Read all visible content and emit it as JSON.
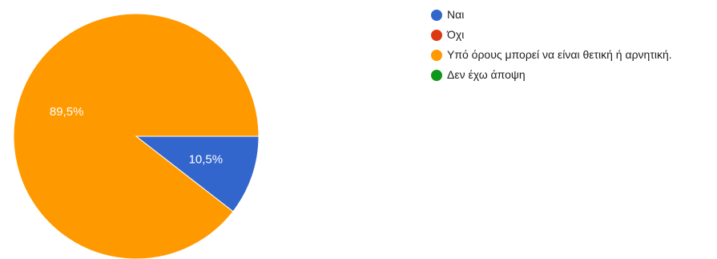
{
  "chart_data": {
    "type": "pie",
    "title": "",
    "categories": [
      "Ναι",
      "Όχι",
      "Υπό όρους μπορεί να είναι θετική ή αρνητική.",
      "Δεν έχω άποψη"
    ],
    "values": [
      10.5,
      0,
      89.5,
      0
    ],
    "value_labels": [
      "10,5%",
      "",
      "89,5%",
      ""
    ],
    "colors": [
      "#3366cc",
      "#dc3912",
      "#ff9900",
      "#109618"
    ],
    "legend_placement": "right",
    "start_angle_deg": 90,
    "direction": "clockwise"
  }
}
